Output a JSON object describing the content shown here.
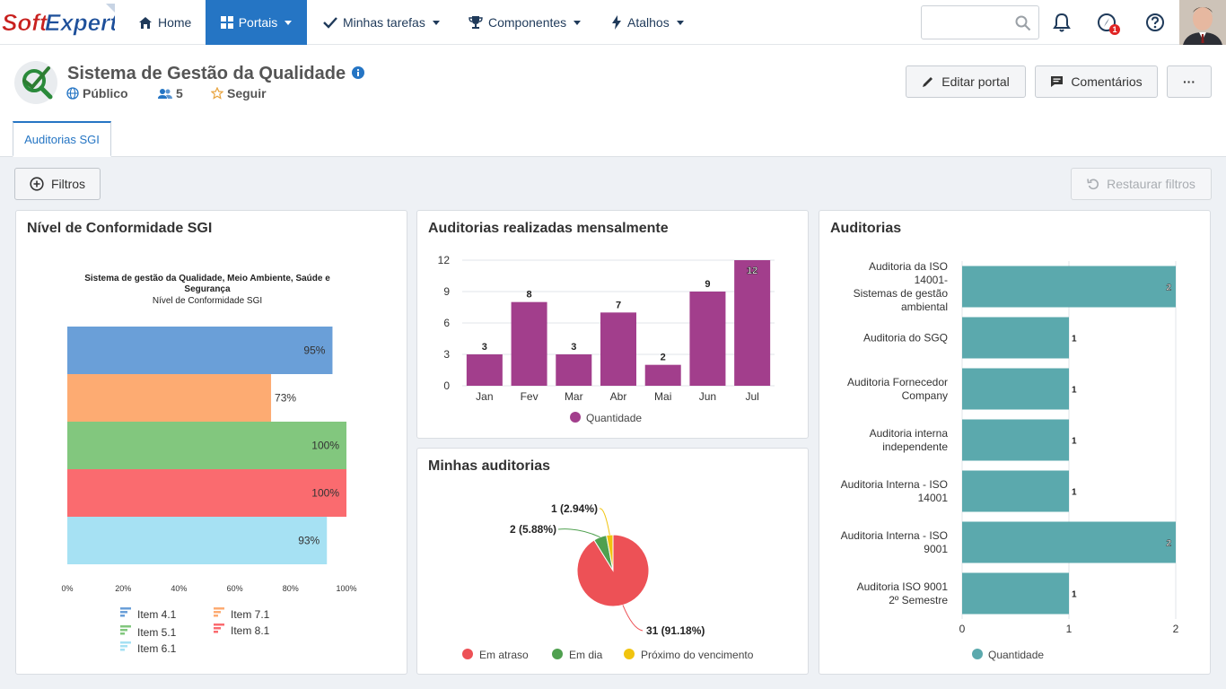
{
  "nav": {
    "logo_text_1": "Soft",
    "logo_text_2": "Expert",
    "home": "Home",
    "portais": "Portais",
    "tarefas": "Minhas tarefas",
    "componentes": "Componentes",
    "atalhos": "Atalhos",
    "search_placeholder": "",
    "notification_count": "1"
  },
  "header": {
    "title": "Sistema de Gestão da Qualidade",
    "visibility": "Público",
    "members": "5",
    "follow": "Seguir",
    "edit_button": "Editar portal",
    "comments_button": "Comentários",
    "more_button": "···",
    "tab": "Auditorias SGI"
  },
  "toolbar": {
    "filters_button": "Filtros",
    "reset_button": "Restaurar filtros"
  },
  "colors": {
    "primary": "#2575c4",
    "bar_purple": "#a23e8c",
    "bar_teal": "#5ba9ad",
    "pie_red": "#ed5156",
    "pie_green": "#4fa04f",
    "pie_yellow": "#f1c40f"
  },
  "chart_data": [
    {
      "panel_title": "Nível de Conformidade SGI",
      "type": "bar",
      "orientation": "horizontal",
      "title": "Sistema de gestão da Qualidade, Meio Ambiente, Saúde e Segurança",
      "subtitle": "Nível de Conformidade SGI",
      "series": [
        {
          "name": "Item 4.1",
          "value": 95,
          "label": "95%",
          "color": "#6a9fd8"
        },
        {
          "name": "Item 7.1",
          "value": 73,
          "label": "73%",
          "color": "#fdab72"
        },
        {
          "name": "Item 5.1",
          "value": 100,
          "label": "100%",
          "color": "#82c77e"
        },
        {
          "name": "Item 8.1",
          "value": 100,
          "label": "100%",
          "color": "#fa6b6f"
        },
        {
          "name": "Item 6.1",
          "value": 93,
          "label": "93%",
          "color": "#a6e1f3"
        }
      ],
      "x_ticks": [
        "0%",
        "20%",
        "40%",
        "60%",
        "80%",
        "100%"
      ],
      "xlim": [
        0,
        100
      ]
    },
    {
      "panel_title": "Auditorias realizadas mensalmente",
      "type": "bar",
      "categories": [
        "Jan",
        "Fev",
        "Mar",
        "Abr",
        "Mai",
        "Jun",
        "Jul"
      ],
      "values": [
        3,
        8,
        3,
        7,
        2,
        9,
        12
      ],
      "y_ticks": [
        "0",
        "3",
        "6",
        "9",
        "12"
      ],
      "ylim": [
        0,
        12
      ],
      "legend": "Quantidade"
    },
    {
      "panel_title": "Minhas auditorias",
      "type": "pie",
      "slices": [
        {
          "name": "Em atraso",
          "value": 31,
          "label": "31 (91.18%)",
          "color": "#ed5156"
        },
        {
          "name": "Em dia",
          "value": 2,
          "label": "2 (5.88%)",
          "color": "#4fa04f"
        },
        {
          "name": "Próximo do vencimento",
          "value": 1,
          "label": "1 (2.94%)",
          "color": "#f1c40f"
        }
      ]
    },
    {
      "panel_title": "Auditorias",
      "type": "bar",
      "orientation": "horizontal",
      "categories": [
        [
          "Auditoria da ISO",
          "14001-",
          "Sistemas de gestão",
          "ambiental"
        ],
        [
          "Auditoria do SGQ"
        ],
        [
          "Auditoria Fornecedor",
          "Company"
        ],
        [
          "Auditoria interna",
          "independente"
        ],
        [
          "Auditoria Interna - ISO",
          "14001"
        ],
        [
          "Auditoria Interna - ISO",
          "9001"
        ],
        [
          "Auditoria ISO 9001",
          "2º Semestre"
        ]
      ],
      "values": [
        2,
        1,
        1,
        1,
        1,
        2,
        1
      ],
      "x_ticks": [
        "0",
        "1",
        "2"
      ],
      "xlim": [
        0,
        2
      ],
      "legend": "Quantidade"
    }
  ]
}
